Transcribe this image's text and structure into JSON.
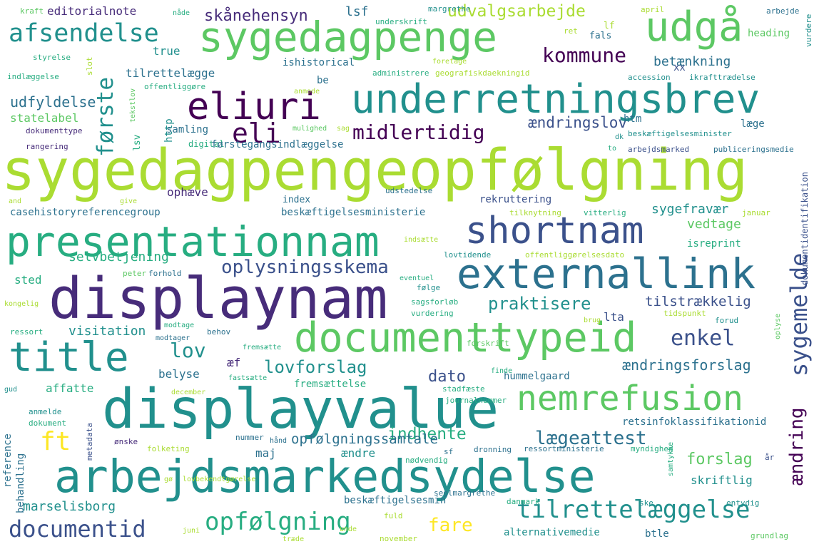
{
  "words": [
    "sygedagpengeopfølgning",
    "displaynam",
    "displayvalue",
    "arbejdsmarkedsydelse",
    "presentationnam",
    "underretningsbrev",
    "sygedagpenge",
    "documenttypeid",
    "externallink",
    "eliuri",
    "shortnam",
    "nemrefusion",
    "title",
    "udgå",
    "tilrettelæggelse",
    "documentid",
    "eli",
    "ft",
    "opfølgning",
    "sygemelde",
    "kommune",
    "afsendelse",
    "midlertidig",
    "første",
    "oplysningsskema",
    "lov",
    "enkel",
    "lægeattest",
    "praktisere",
    "ændring",
    "lovforslag",
    "fare",
    "udvalgsarbejde",
    "indhente",
    "ændringsforslag",
    "skånehensyn",
    "ændringslov",
    "dato",
    "forslag",
    "opfølgningssamtale",
    "udfyldelse",
    "tilstrækkelig",
    "sygefravær",
    "betænkning",
    "marselisborg",
    "vedtage",
    "visitation",
    "editorialnote",
    "selvbetjening",
    "lsf",
    "kraft",
    "nåde",
    "margrethe",
    "april",
    "arbejde",
    "underskrift",
    "ret",
    "vurdere",
    "heading",
    "styrelse",
    "true",
    "fals",
    "lf",
    "indlæggelse",
    "slot",
    "ishistorical",
    "foretage",
    "administrere",
    "geografiskdaekningid",
    "accession",
    "ikrafttrædelse",
    "tilrettelægge",
    "be",
    "xx",
    "offentliggøre",
    "anmode",
    "statelabel",
    "http",
    "htm",
    "samling",
    "læge",
    "dokumenttype",
    "mulighed",
    "sag",
    "lsv",
    "digital",
    "beskæftigelsesminister",
    "rangering",
    "førstegangsindlæggelse",
    "dk",
    "to",
    "arbejdsmarked",
    "publiceringsmedie",
    "ophæve",
    "index",
    "rekruttering",
    "dokumentidentifikation",
    "and",
    "give",
    "udstedelse",
    "casehistoryreferencegroup",
    "beskæftigelsesministerie",
    "tilknytning",
    "vitterlig",
    "januar",
    "indsætte",
    "isreprint",
    "lovtidende",
    "offentliggørelsesdato",
    "peter",
    "forhold",
    "eventuel",
    "følge",
    "sted",
    "kongelig",
    "sagsforløb",
    "vurdering",
    "tidspunkt",
    "ressort",
    "modtage",
    "lta",
    "brug",
    "forud",
    "oplyse",
    "behov",
    "modtager",
    "fremsætte",
    "forskrift",
    "belyse",
    "æf",
    "hummelgaard",
    "fremsættelse",
    "gud",
    "affatte",
    "fastsætte",
    "finde",
    "december",
    "stadfæste",
    "journalnummer",
    "anmelde",
    "metadata",
    "dokument",
    "retsinfoklassifikationid",
    "reference",
    "behandling",
    "ønske",
    "folketing",
    "nummer",
    "hånd",
    "maj",
    "ændre",
    "dronning",
    "sf",
    "nødvendig",
    "ressortministerie",
    "myndighed",
    "år",
    "samtykke",
    "skriftlig",
    "gø",
    "lovbekendtgørelse",
    "beskæftigelsesmin",
    "danmark",
    "ske",
    "entydig",
    "seglmargrethe",
    "fuld",
    "juni",
    "unde",
    "november",
    "alternativemedie",
    "btle",
    "træde",
    "grundlag",
    "tekstlov"
  ]
}
